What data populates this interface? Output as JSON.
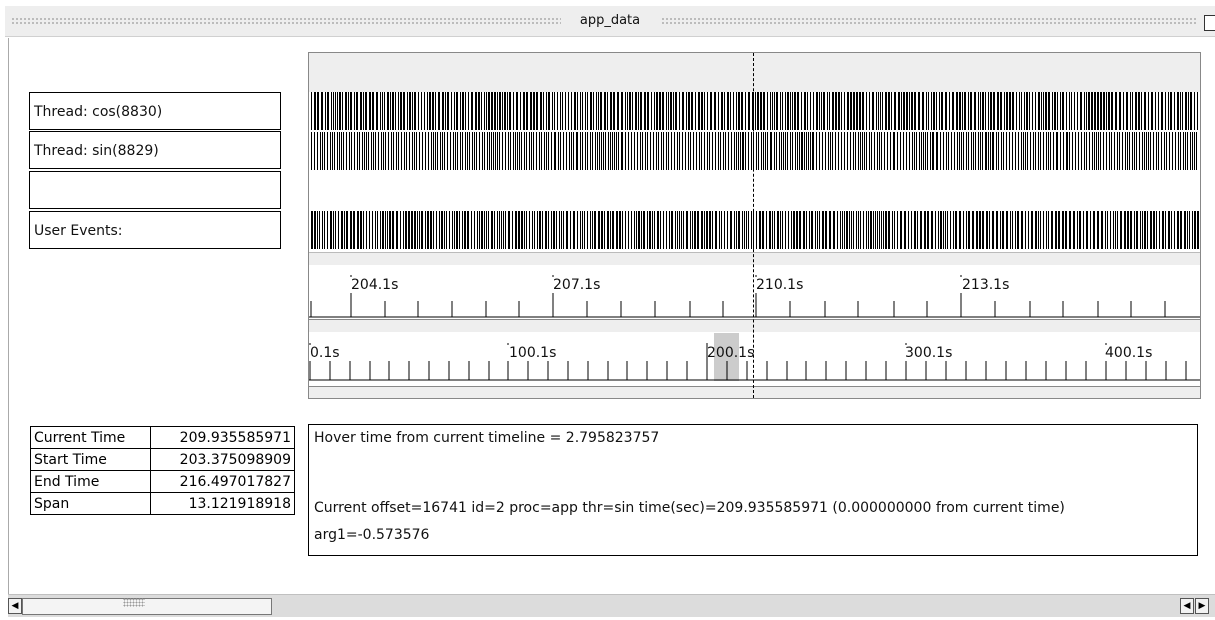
{
  "window": {
    "title": "app_data"
  },
  "threads": [
    {
      "label": "Thread: cos(8830)"
    },
    {
      "label": "Thread: sin(8829)"
    },
    {
      "label": ""
    },
    {
      "label": "User Events:"
    }
  ],
  "zoom_axis": {
    "ticks": [
      "204.1s",
      "207.1s",
      "210.1s",
      "213.1s"
    ]
  },
  "overview_axis": {
    "ticks": [
      "0.1s",
      "100.1s",
      "200.1s",
      "300.1s",
      "400.1s"
    ]
  },
  "info": {
    "current_time_label": "Current Time",
    "current_time_value": "209.935585971",
    "start_time_label": "Start Time",
    "start_time_value": "203.375098909",
    "end_time_label": "End Time",
    "end_time_value": "216.497017827",
    "span_label": "Span",
    "span_value": "13.121918918"
  },
  "hover": {
    "line1": "Hover time from current timeline = 2.795823757",
    "line2": "Current offset=16741  id=2  proc=app  thr=sin  time(sec)=209.935585971   (0.000000000 from current time)",
    "line3": "arg1=-0.573576"
  },
  "colors": {
    "event_mark": "#000000",
    "band_gray": "#eeeeee",
    "selection": "#cccccc"
  }
}
